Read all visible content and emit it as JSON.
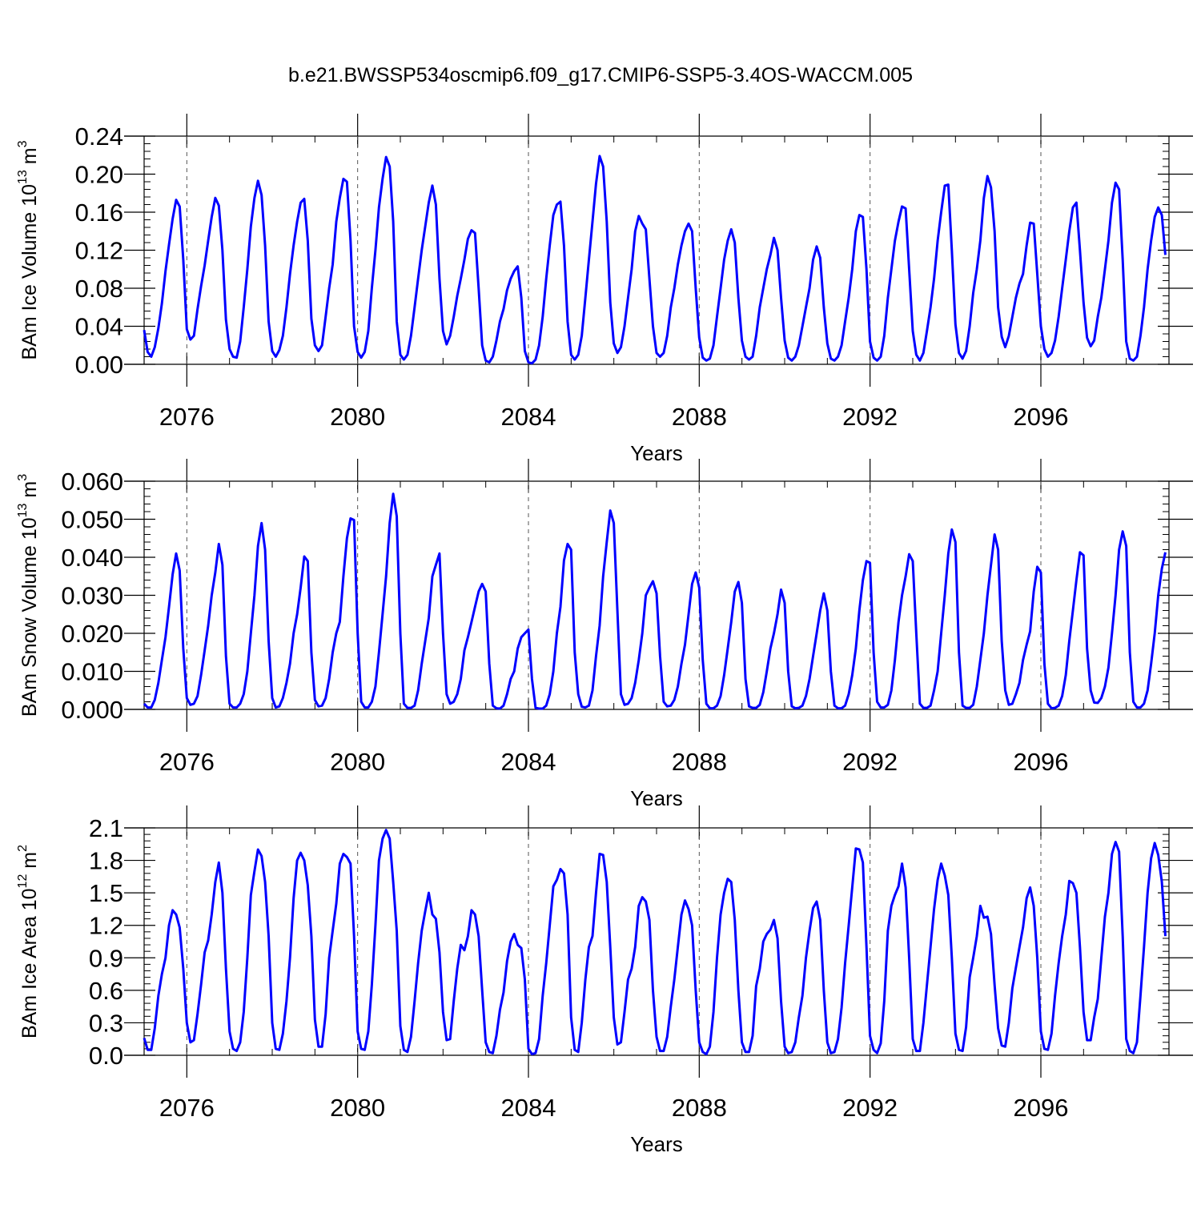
{
  "title": "b.e21.BWSSP534oscmip6.f09_g17.CMIP6-SSP5-3.4OS-WACCM.005",
  "series_color": "#0000ff",
  "chart_data": [
    {
      "type": "line",
      "ylabel": "BAm Ice Volume",
      "yunit_base": "10",
      "yunit_exp": "13",
      "yunit_unit": "m",
      "yunit_unit_exp": "3",
      "xlabel": "Years",
      "xlim": [
        2075.0,
        2099.0
      ],
      "ylim": [
        0.0,
        0.24
      ],
      "xticks": [
        2076,
        2080,
        2084,
        2088,
        2092,
        2096
      ],
      "yticks": [
        "0.00",
        "0.04",
        "0.08",
        "0.12",
        "0.16",
        "0.20",
        "0.24"
      ],
      "grid": "vertical dashed at labeled years",
      "x_start": 2075.0,
      "x_step": 0.08333,
      "values": [
        0.036,
        0.013,
        0.008,
        0.018,
        0.038,
        0.064,
        0.098,
        0.126,
        0.153,
        0.173,
        0.166,
        0.11,
        0.037,
        0.026,
        0.03,
        0.058,
        0.082,
        0.104,
        0.13,
        0.155,
        0.175,
        0.167,
        0.12,
        0.047,
        0.016,
        0.008,
        0.007,
        0.024,
        0.06,
        0.1,
        0.145,
        0.175,
        0.193,
        0.178,
        0.125,
        0.045,
        0.014,
        0.008,
        0.015,
        0.03,
        0.06,
        0.095,
        0.125,
        0.15,
        0.17,
        0.174,
        0.13,
        0.048,
        0.02,
        0.014,
        0.02,
        0.05,
        0.08,
        0.105,
        0.15,
        0.175,
        0.195,
        0.192,
        0.13,
        0.04,
        0.013,
        0.007,
        0.013,
        0.035,
        0.08,
        0.12,
        0.165,
        0.195,
        0.218,
        0.208,
        0.15,
        0.045,
        0.01,
        0.005,
        0.01,
        0.03,
        0.06,
        0.09,
        0.12,
        0.145,
        0.17,
        0.188,
        0.168,
        0.09,
        0.035,
        0.021,
        0.03,
        0.05,
        0.072,
        0.09,
        0.11,
        0.132,
        0.141,
        0.138,
        0.08,
        0.02,
        0.004,
        0.002,
        0.008,
        0.025,
        0.045,
        0.058,
        0.078,
        0.09,
        0.098,
        0.103,
        0.07,
        0.014,
        0.002,
        0.001,
        0.005,
        0.02,
        0.05,
        0.09,
        0.125,
        0.157,
        0.168,
        0.171,
        0.125,
        0.045,
        0.01,
        0.005,
        0.01,
        0.03,
        0.07,
        0.11,
        0.15,
        0.19,
        0.219,
        0.208,
        0.15,
        0.065,
        0.022,
        0.012,
        0.018,
        0.04,
        0.07,
        0.1,
        0.14,
        0.156,
        0.148,
        0.142,
        0.09,
        0.04,
        0.012,
        0.008,
        0.012,
        0.03,
        0.06,
        0.08,
        0.105,
        0.125,
        0.14,
        0.148,
        0.14,
        0.08,
        0.028,
        0.007,
        0.004,
        0.006,
        0.02,
        0.05,
        0.08,
        0.11,
        0.13,
        0.142,
        0.128,
        0.07,
        0.025,
        0.008,
        0.005,
        0.008,
        0.03,
        0.06,
        0.08,
        0.1,
        0.115,
        0.133,
        0.12,
        0.07,
        0.025,
        0.007,
        0.004,
        0.008,
        0.02,
        0.04,
        0.06,
        0.08,
        0.11,
        0.124,
        0.112,
        0.06,
        0.022,
        0.006,
        0.004,
        0.008,
        0.02,
        0.045,
        0.07,
        0.1,
        0.14,
        0.157,
        0.155,
        0.1,
        0.024,
        0.007,
        0.004,
        0.008,
        0.03,
        0.07,
        0.1,
        0.13,
        0.15,
        0.166,
        0.164,
        0.1,
        0.035,
        0.01,
        0.004,
        0.012,
        0.035,
        0.06,
        0.09,
        0.13,
        0.16,
        0.188,
        0.189,
        0.12,
        0.042,
        0.012,
        0.006,
        0.014,
        0.04,
        0.075,
        0.1,
        0.13,
        0.175,
        0.198,
        0.186,
        0.14,
        0.06,
        0.029,
        0.018,
        0.03,
        0.05,
        0.07,
        0.085,
        0.095,
        0.125,
        0.149,
        0.148,
        0.095,
        0.04,
        0.016,
        0.008,
        0.012,
        0.025,
        0.05,
        0.08,
        0.11,
        0.14,
        0.165,
        0.17,
        0.12,
        0.065,
        0.028,
        0.019,
        0.025,
        0.05,
        0.07,
        0.1,
        0.13,
        0.17,
        0.191,
        0.184,
        0.11,
        0.024,
        0.006,
        0.004,
        0.008,
        0.03,
        0.06,
        0.1,
        0.13,
        0.155,
        0.165,
        0.157,
        0.115
      ]
    },
    {
      "type": "line",
      "ylabel": "BAm Snow Volume",
      "yunit_base": "10",
      "yunit_exp": "13",
      "yunit_unit": "m",
      "yunit_unit_exp": "3",
      "xlabel": "Years",
      "xlim": [
        2075.0,
        2099.0
      ],
      "ylim": [
        0.0,
        0.06
      ],
      "xticks": [
        2076,
        2080,
        2084,
        2088,
        2092,
        2096
      ],
      "yticks": [
        "0.000",
        "0.010",
        "0.020",
        "0.030",
        "0.040",
        "0.050",
        "0.060"
      ],
      "grid": "vertical dashed at labeled years",
      "x_start": 2075.0,
      "x_step": 0.08333,
      "values": [
        0.0015,
        0.0005,
        0.0005,
        0.0025,
        0.007,
        0.013,
        0.019,
        0.027,
        0.0355,
        0.041,
        0.0365,
        0.016,
        0.003,
        0.0012,
        0.0015,
        0.0035,
        0.009,
        0.0155,
        0.022,
        0.03,
        0.036,
        0.0435,
        0.038,
        0.014,
        0.0015,
        0.0005,
        0.0005,
        0.0015,
        0.004,
        0.01,
        0.02,
        0.03,
        0.043,
        0.049,
        0.042,
        0.018,
        0.003,
        0.0005,
        0.0008,
        0.003,
        0.007,
        0.012,
        0.02,
        0.025,
        0.032,
        0.0402,
        0.039,
        0.015,
        0.0025,
        0.0008,
        0.001,
        0.003,
        0.008,
        0.015,
        0.02,
        0.023,
        0.035,
        0.045,
        0.0502,
        0.0498,
        0.02,
        0.002,
        0.0005,
        0.0005,
        0.002,
        0.006,
        0.015,
        0.025,
        0.035,
        0.049,
        0.0567,
        0.0508,
        0.02,
        0.0015,
        0.0004,
        0.0004,
        0.001,
        0.005,
        0.012,
        0.018,
        0.024,
        0.035,
        0.038,
        0.041,
        0.02,
        0.004,
        0.0015,
        0.002,
        0.004,
        0.008,
        0.0155,
        0.019,
        0.023,
        0.027,
        0.031,
        0.033,
        0.031,
        0.012,
        0.001,
        0.0003,
        0.0002,
        0.001,
        0.004,
        0.008,
        0.01,
        0.016,
        0.019,
        0.02,
        0.021,
        0.008,
        0.0004,
        0.0002,
        0.0002,
        0.001,
        0.004,
        0.01,
        0.02,
        0.027,
        0.0392,
        0.0435,
        0.042,
        0.015,
        0.004,
        0.0007,
        0.0005,
        0.001,
        0.005,
        0.014,
        0.022,
        0.035,
        0.044,
        0.0523,
        0.049,
        0.026,
        0.004,
        0.0012,
        0.0015,
        0.003,
        0.007,
        0.013,
        0.02,
        0.03,
        0.032,
        0.0337,
        0.0305,
        0.014,
        0.002,
        0.0008,
        0.001,
        0.0025,
        0.006,
        0.012,
        0.017,
        0.025,
        0.033,
        0.036,
        0.032,
        0.013,
        0.0015,
        0.0003,
        0.0003,
        0.001,
        0.0035,
        0.009,
        0.016,
        0.023,
        0.031,
        0.0335,
        0.028,
        0.008,
        0.0008,
        0.0004,
        0.0004,
        0.0012,
        0.0045,
        0.01,
        0.016,
        0.02,
        0.025,
        0.0315,
        0.028,
        0.01,
        0.0008,
        0.0003,
        0.0004,
        0.001,
        0.0035,
        0.008,
        0.014,
        0.02,
        0.026,
        0.0305,
        0.026,
        0.01,
        0.001,
        0.0003,
        0.0003,
        0.001,
        0.004,
        0.009,
        0.016,
        0.026,
        0.034,
        0.039,
        0.0385,
        0.015,
        0.002,
        0.0005,
        0.0005,
        0.0012,
        0.005,
        0.013,
        0.023,
        0.03,
        0.035,
        0.0408,
        0.039,
        0.02,
        0.0015,
        0.0004,
        0.0004,
        0.001,
        0.005,
        0.01,
        0.02,
        0.03,
        0.041,
        0.0473,
        0.044,
        0.015,
        0.001,
        0.0004,
        0.0004,
        0.0012,
        0.006,
        0.013,
        0.02,
        0.03,
        0.038,
        0.046,
        0.042,
        0.018,
        0.005,
        0.0012,
        0.0015,
        0.004,
        0.007,
        0.013,
        0.017,
        0.0205,
        0.031,
        0.0375,
        0.036,
        0.012,
        0.0015,
        0.0003,
        0.0004,
        0.001,
        0.0035,
        0.009,
        0.018,
        0.026,
        0.034,
        0.0413,
        0.0405,
        0.016,
        0.005,
        0.0018,
        0.0017,
        0.003,
        0.006,
        0.011,
        0.02,
        0.03,
        0.042,
        0.0468,
        0.043,
        0.015,
        0.002,
        0.0005,
        0.0005,
        0.0015,
        0.005,
        0.012,
        0.02,
        0.03,
        0.037,
        0.0413
      ]
    },
    {
      "type": "line",
      "ylabel": "BAm Ice Area",
      "yunit_base": "10",
      "yunit_exp": "12",
      "yunit_unit": "m",
      "yunit_unit_exp": "2",
      "xlabel": "Years",
      "xlim": [
        2075.0,
        2099.0
      ],
      "ylim": [
        0.0,
        2.1
      ],
      "xticks": [
        2076,
        2080,
        2084,
        2088,
        2092,
        2096
      ],
      "yticks": [
        "0.0",
        "0.3",
        "0.6",
        "0.9",
        "1.2",
        "1.5",
        "1.8",
        "2.1"
      ],
      "grid": "vertical dashed at labeled years",
      "x_start": 2075.0,
      "x_step": 0.08333,
      "values": [
        0.16,
        0.05,
        0.05,
        0.25,
        0.55,
        0.75,
        0.9,
        1.2,
        1.34,
        1.3,
        1.18,
        0.8,
        0.3,
        0.12,
        0.14,
        0.38,
        0.65,
        0.95,
        1.06,
        1.3,
        1.6,
        1.78,
        1.5,
        0.8,
        0.22,
        0.06,
        0.04,
        0.12,
        0.4,
        0.9,
        1.48,
        1.7,
        1.9,
        1.84,
        1.6,
        1.1,
        0.3,
        0.06,
        0.05,
        0.2,
        0.5,
        0.9,
        1.45,
        1.8,
        1.87,
        1.8,
        1.57,
        1.1,
        0.33,
        0.08,
        0.08,
        0.38,
        0.9,
        1.15,
        1.4,
        1.77,
        1.86,
        1.83,
        1.77,
        1.1,
        0.22,
        0.06,
        0.05,
        0.22,
        0.65,
        1.2,
        1.8,
        2.0,
        2.08,
        2.0,
        1.6,
        1.15,
        0.27,
        0.05,
        0.03,
        0.17,
        0.5,
        0.85,
        1.15,
        1.33,
        1.5,
        1.3,
        1.26,
        0.95,
        0.4,
        0.14,
        0.15,
        0.5,
        0.8,
        1.02,
        0.97,
        1.1,
        1.34,
        1.3,
        1.1,
        0.6,
        0.12,
        0.03,
        0.02,
        0.18,
        0.42,
        0.58,
        0.87,
        1.05,
        1.12,
        1.02,
        0.99,
        0.7,
        0.06,
        0.01,
        0.02,
        0.15,
        0.55,
        0.85,
        1.2,
        1.56,
        1.62,
        1.72,
        1.68,
        1.3,
        0.35,
        0.05,
        0.03,
        0.3,
        0.7,
        1.0,
        1.1,
        1.5,
        1.86,
        1.85,
        1.6,
        1.0,
        0.35,
        0.1,
        0.12,
        0.4,
        0.7,
        0.8,
        1.0,
        1.38,
        1.46,
        1.42,
        1.25,
        0.6,
        0.17,
        0.04,
        0.04,
        0.17,
        0.45,
        0.7,
        1.0,
        1.3,
        1.43,
        1.35,
        1.2,
        0.6,
        0.12,
        0.03,
        0.01,
        0.08,
        0.4,
        0.9,
        1.3,
        1.5,
        1.63,
        1.6,
        1.25,
        0.6,
        0.12,
        0.03,
        0.03,
        0.18,
        0.64,
        0.8,
        1.05,
        1.12,
        1.16,
        1.25,
        1.08,
        0.5,
        0.08,
        0.02,
        0.03,
        0.12,
        0.35,
        0.55,
        0.9,
        1.15,
        1.36,
        1.42,
        1.25,
        0.6,
        0.12,
        0.02,
        0.03,
        0.15,
        0.44,
        0.85,
        1.2,
        1.55,
        1.91,
        1.9,
        1.78,
        1.0,
        0.18,
        0.05,
        0.02,
        0.11,
        0.5,
        1.15,
        1.38,
        1.48,
        1.56,
        1.77,
        1.55,
        0.9,
        0.15,
        0.04,
        0.04,
        0.3,
        0.65,
        1.0,
        1.35,
        1.62,
        1.77,
        1.66,
        1.48,
        0.9,
        0.2,
        0.05,
        0.04,
        0.26,
        0.72,
        0.9,
        1.1,
        1.38,
        1.27,
        1.28,
        1.12,
        0.65,
        0.25,
        0.09,
        0.08,
        0.3,
        0.62,
        0.81,
        1.0,
        1.18,
        1.45,
        1.55,
        1.38,
        0.9,
        0.22,
        0.06,
        0.05,
        0.2,
        0.55,
        0.85,
        1.1,
        1.3,
        1.61,
        1.59,
        1.5,
        1.0,
        0.4,
        0.14,
        0.14,
        0.35,
        0.52,
        0.9,
        1.28,
        1.5,
        1.86,
        1.97,
        1.88,
        1.1,
        0.15,
        0.04,
        0.02,
        0.12,
        0.55,
        1.0,
        1.5,
        1.82,
        1.96,
        1.85,
        1.6,
        1.1
      ]
    }
  ]
}
